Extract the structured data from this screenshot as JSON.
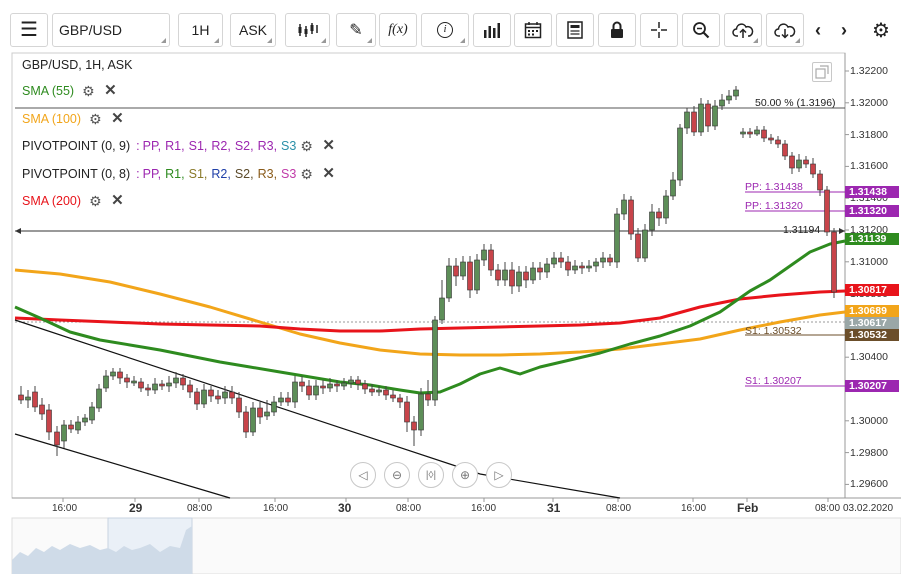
{
  "toolbar": {
    "symbol": "GBP/USD",
    "timeframe": "1H",
    "price_type": "ASK",
    "fx_label": "f(x)"
  },
  "legend": {
    "title": "GBP/USD, 1H, ASK",
    "sma55": "SMA (55)",
    "sma100": "SMA (100)",
    "pivot1_name": "PIVOTPOINT (0, 9)",
    "pivot2_name": "PIVOTPOINT (0, 8)",
    "pivot_sep": ":",
    "pivot_items": [
      "PP,",
      "R1,",
      "S1,",
      "R2,",
      "S2,",
      "R3,",
      "S3"
    ],
    "sma200": "SMA (200)"
  },
  "price_axis": [
    "1.32200",
    "1.32000",
    "1.31800",
    "1.31600",
    "1.31400",
    "1.31200",
    "1.31000",
    "1.30800",
    "1.30600",
    "1.30400",
    "1.30200",
    "1.30000",
    "1.29800",
    "1.29600"
  ],
  "time_axis": [
    {
      "text": "16:00",
      "bold": false
    },
    {
      "text": "29",
      "bold": true
    },
    {
      "text": "08:00",
      "bold": false
    },
    {
      "text": "16:00",
      "bold": false
    },
    {
      "text": "30",
      "bold": true
    },
    {
      "text": "08:00",
      "bold": false
    },
    {
      "text": "16:00",
      "bold": false
    },
    {
      "text": "31",
      "bold": true
    },
    {
      "text": "08:00",
      "bold": false
    },
    {
      "text": "16:00",
      "bold": false
    },
    {
      "text": "Feb",
      "bold": true
    },
    {
      "text": "08:00",
      "bold": false
    },
    {
      "text": "03.02.2020",
      "bold": false
    }
  ],
  "fib_label": "50.00 % (1.3196)",
  "crosshair_label": "1.31194",
  "pivot_labels": {
    "pp": "PP: 1.31438",
    "pp2": "PP: 1.31320",
    "s1a": "S1: 1.30532",
    "s1b": "S1: 1.30207"
  },
  "price_tags": [
    {
      "text": "1.31438",
      "color": "#9c27b0"
    },
    {
      "text": "1.31320",
      "color": "#9c27b0"
    },
    {
      "text": "1.31139",
      "color": "#2e8b1f"
    },
    {
      "text": "1.30817",
      "color": "#e8141b"
    },
    {
      "text": "1.30689",
      "color": "#f2a51a"
    },
    {
      "text": "1.30617",
      "color": "#9aa7a7"
    },
    {
      "text": "1.30532",
      "color": "#6b4e2a"
    },
    {
      "text": "1.30207",
      "color": "#9c27b0"
    }
  ],
  "colors": {
    "sma55": "#2e8b1f",
    "sma100": "#f2a51a",
    "sma200": "#e8141b",
    "bull": "#5d8e58",
    "bear": "#c8444a",
    "pivot": "#9c27b0"
  }
}
